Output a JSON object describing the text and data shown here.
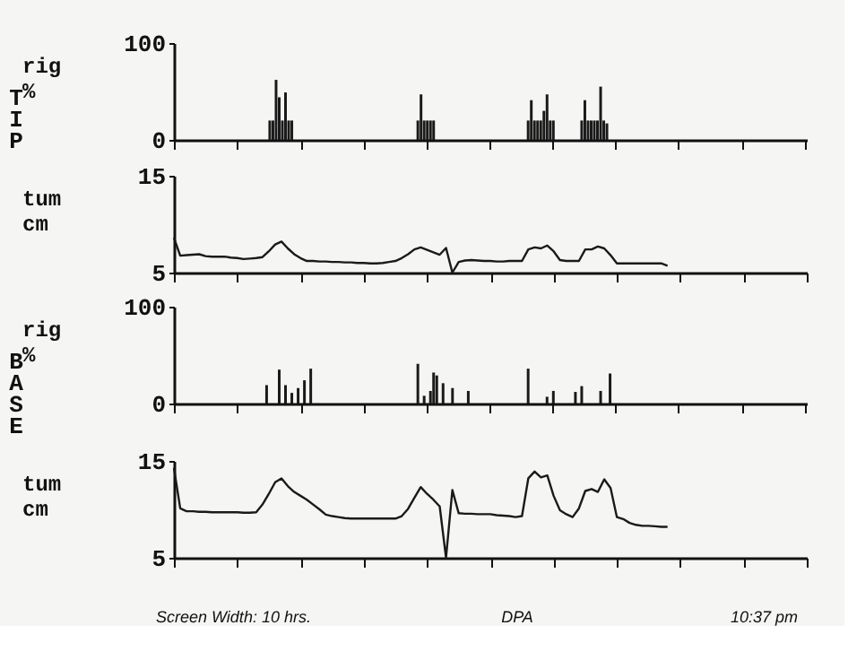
{
  "chart_data": [
    {
      "type": "bar",
      "ylabel": "rig %",
      "annotations": [
        "TIP"
      ],
      "color": "#1a1a1a",
      "ylim": [
        0,
        100
      ],
      "yticks": [
        0,
        100
      ],
      "tick_labels": "y",
      "categories": [
        null,
        null,
        null,
        null,
        null,
        null,
        null,
        null,
        null,
        null,
        null,
        null,
        null,
        null,
        null,
        null,
        null,
        null,
        null,
        null,
        null,
        null,
        null,
        null,
        null,
        null,
        null,
        null,
        null,
        null,
        null,
        null,
        null,
        null,
        null,
        null,
        null,
        null,
        null,
        null,
        null,
        null,
        null,
        null,
        null,
        null,
        null,
        null,
        null,
        null,
        null,
        null,
        null,
        null,
        null,
        null,
        null,
        null,
        null,
        null,
        null,
        null,
        null,
        null,
        null,
        null,
        null,
        null,
        null,
        null,
        null,
        null,
        null,
        null,
        null,
        null,
        null,
        null,
        null,
        null,
        null,
        null,
        null,
        null,
        null,
        null,
        null,
        null,
        null,
        null,
        null,
        null,
        null,
        null,
        null,
        null,
        null,
        null,
        null,
        null,
        null,
        null,
        null,
        null,
        null,
        null,
        null,
        null,
        null,
        null,
        null,
        null,
        null,
        null,
        null,
        null,
        null,
        null,
        null,
        null,
        null,
        null,
        null,
        null,
        null,
        null,
        null,
        null,
        null,
        null,
        null,
        null,
        null,
        null,
        null,
        null,
        null,
        null,
        null,
        null,
        null,
        null,
        null,
        null,
        null,
        null,
        null,
        null,
        null,
        null,
        null,
        null,
        null,
        null,
        null,
        null,
        null,
        null,
        null,
        null,
        null,
        null,
        null,
        null,
        null,
        null,
        null,
        null,
        null,
        null,
        null,
        null,
        null,
        null,
        null,
        null,
        null,
        null,
        null,
        null,
        null,
        null,
        null,
        null,
        null,
        null,
        null,
        null,
        null,
        null,
        null,
        null,
        null,
        null,
        null,
        null,
        null,
        null,
        null,
        null,
        null
      ],
      "values": [
        0,
        0,
        0,
        0,
        0,
        0,
        0,
        0,
        0,
        0,
        0,
        0,
        0,
        0,
        0,
        0,
        0,
        0,
        0,
        0,
        0,
        0,
        0,
        0,
        0,
        0,
        0,
        0,
        0,
        0,
        20,
        20,
        62,
        44,
        20,
        49,
        20,
        20,
        0,
        0,
        0,
        0,
        0,
        0,
        0,
        0,
        0,
        0,
        0,
        0,
        0,
        0,
        0,
        0,
        0,
        0,
        0,
        0,
        0,
        0,
        0,
        0,
        0,
        0,
        0,
        0,
        0,
        0,
        0,
        0,
        0,
        0,
        0,
        0,
        0,
        0,
        0,
        20,
        47,
        20,
        20,
        20,
        20,
        0,
        0,
        0,
        0,
        0,
        0,
        0,
        0,
        0,
        0,
        0,
        0,
        0,
        0,
        0,
        0,
        0,
        0,
        0,
        0,
        0,
        0,
        0,
        0,
        0,
        0,
        0,
        0,
        0,
        20,
        41,
        20,
        20,
        20,
        30,
        47,
        20,
        20,
        0,
        0,
        0,
        0,
        0,
        0,
        0,
        0,
        20,
        41,
        20,
        20,
        20,
        20,
        55,
        20,
        17,
        0,
        0,
        0,
        0,
        0,
        0,
        0,
        0,
        0,
        0,
        0,
        0,
        0,
        0,
        0,
        0,
        0,
        0,
        0,
        0,
        0,
        0,
        0,
        0,
        0,
        0,
        0,
        0,
        0,
        0,
        0,
        0,
        0,
        0,
        0,
        0,
        0,
        0,
        0,
        0,
        0,
        0,
        0,
        0,
        0,
        0,
        0,
        0,
        0,
        0,
        0,
        0,
        0,
        0,
        0,
        0,
        0,
        0,
        0,
        0,
        0,
        0,
        0
      ]
    },
    {
      "type": "line",
      "ylabel": "tum cm",
      "line_style": "solid",
      "color": "#1a1a1a",
      "ylim": [
        5,
        15
      ],
      "yticks": [
        5,
        15
      ],
      "tick_labels": "y",
      "categories": [
        null,
        null,
        null,
        null,
        null,
        null,
        null,
        null,
        null,
        null,
        null,
        null,
        null,
        null,
        null,
        null,
        null,
        null,
        null,
        null,
        null,
        null,
        null,
        null,
        null,
        null,
        null,
        null,
        null,
        null,
        null,
        null,
        null,
        null,
        null,
        null,
        null,
        null,
        null,
        null,
        null,
        null,
        null,
        null,
        null,
        null,
        null,
        null,
        null,
        null,
        null,
        null,
        null,
        null,
        null,
        null,
        null,
        null,
        null,
        null,
        null,
        null,
        null,
        null,
        null,
        null,
        null,
        null,
        null,
        null,
        null,
        null,
        null,
        null,
        null,
        null,
        null,
        null,
        null,
        null,
        null,
        null,
        null,
        null,
        null,
        null,
        null,
        null,
        null,
        null,
        null,
        null,
        null,
        null,
        null,
        null,
        null,
        null,
        null,
        null,
        null
      ],
      "values": [
        8.6,
        6.75,
        6.8,
        6.85,
        6.9,
        6.7,
        6.65,
        6.65,
        6.65,
        6.55,
        6.5,
        6.4,
        6.45,
        6.5,
        6.6,
        7.2,
        7.9,
        8.2,
        7.5,
        6.9,
        6.5,
        6.2,
        6.2,
        6.15,
        6.15,
        6.1,
        6.1,
        6.05,
        6.05,
        6.0,
        6.0,
        5.95,
        5.95,
        6.0,
        6.1,
        6.2,
        6.5,
        6.9,
        7.4,
        7.6,
        7.35,
        7.1,
        6.85,
        7.55,
        5.0,
        6.1,
        6.25,
        6.3,
        6.25,
        6.2,
        6.2,
        6.15,
        6.15,
        6.2,
        6.2,
        6.2,
        7.4,
        7.6,
        7.5,
        7.8,
        7.2,
        6.3,
        6.2,
        6.2,
        6.2,
        7.4,
        7.4,
        7.7,
        7.5,
        6.8,
        5.95,
        5.95,
        5.95,
        5.95,
        5.95,
        5.95,
        5.95,
        5.95,
        5.7,
        null,
        null,
        null,
        null,
        null,
        null,
        null,
        null,
        null,
        null,
        null,
        null,
        null,
        null,
        null,
        null,
        null,
        null,
        null,
        null,
        null,
        null
      ]
    },
    {
      "type": "bar",
      "ylabel": "rig %",
      "annotations": [
        "BASE"
      ],
      "color": "#1a1a1a",
      "ylim": [
        0,
        100
      ],
      "yticks": [
        0,
        100
      ],
      "tick_labels": "y",
      "categories": [
        null,
        null,
        null,
        null,
        null,
        null,
        null,
        null,
        null,
        null,
        null,
        null,
        null,
        null,
        null,
        null,
        null,
        null,
        null,
        null,
        null,
        null,
        null,
        null,
        null,
        null,
        null,
        null,
        null,
        null,
        null,
        null,
        null,
        null,
        null,
        null,
        null,
        null,
        null,
        null,
        null,
        null,
        null,
        null,
        null,
        null,
        null,
        null,
        null,
        null,
        null,
        null,
        null,
        null,
        null,
        null,
        null,
        null,
        null,
        null,
        null,
        null,
        null,
        null,
        null,
        null,
        null,
        null,
        null,
        null,
        null,
        null,
        null,
        null,
        null,
        null,
        null,
        null,
        null,
        null,
        null,
        null,
        null,
        null,
        null,
        null,
        null,
        null,
        null,
        null,
        null,
        null,
        null,
        null,
        null,
        null,
        null,
        null,
        null,
        null,
        null,
        null,
        null,
        null,
        null,
        null,
        null,
        null,
        null,
        null,
        null,
        null,
        null,
        null,
        null,
        null,
        null,
        null,
        null,
        null,
        null,
        null,
        null,
        null,
        null,
        null,
        null,
        null,
        null,
        null,
        null,
        null,
        null,
        null,
        null,
        null,
        null,
        null,
        null,
        null,
        null,
        null,
        null,
        null,
        null,
        null,
        null,
        null,
        null,
        null,
        null,
        null,
        null,
        null,
        null,
        null,
        null,
        null,
        null,
        null,
        null,
        null,
        null,
        null,
        null,
        null,
        null,
        null,
        null,
        null,
        null,
        null,
        null,
        null,
        null,
        null,
        null,
        null,
        null,
        null,
        null,
        null,
        null,
        null,
        null,
        null,
        null,
        null,
        null,
        null,
        null,
        null,
        null,
        null,
        null,
        null,
        null,
        null,
        null,
        null,
        null
      ],
      "values": [
        0,
        0,
        0,
        0,
        0,
        0,
        0,
        0,
        0,
        0,
        0,
        0,
        0,
        0,
        0,
        0,
        0,
        0,
        0,
        0,
        0,
        0,
        0,
        0,
        0,
        0,
        0,
        0,
        0,
        19,
        0,
        0,
        0,
        35,
        0,
        19,
        0,
        11,
        0,
        16,
        0,
        24,
        0,
        36,
        0,
        0,
        0,
        0,
        0,
        0,
        0,
        0,
        0,
        0,
        0,
        0,
        0,
        0,
        0,
        0,
        0,
        0,
        0,
        0,
        0,
        0,
        0,
        0,
        0,
        0,
        0,
        0,
        0,
        0,
        0,
        0,
        0,
        41,
        0,
        8,
        0,
        13,
        32,
        29,
        0,
        21,
        0,
        0,
        16,
        0,
        0,
        0,
        0,
        13,
        0,
        0,
        0,
        0,
        0,
        0,
        0,
        0,
        0,
        0,
        0,
        0,
        0,
        0,
        0,
        0,
        0,
        0,
        36,
        0,
        0,
        0,
        0,
        0,
        7,
        0,
        13,
        0,
        0,
        0,
        0,
        0,
        0,
        12,
        0,
        18,
        0,
        0,
        0,
        0,
        0,
        13,
        0,
        0,
        31,
        0,
        0,
        0,
        0,
        0,
        0,
        0,
        0,
        0,
        0,
        0,
        0,
        0,
        0,
        0,
        0,
        0,
        0,
        0,
        0,
        0,
        0,
        0,
        0,
        0,
        0,
        0,
        0,
        0,
        0,
        0,
        0,
        0,
        0,
        0,
        0,
        0,
        0,
        0,
        0,
        0,
        0,
        0,
        0,
        0,
        0,
        0,
        0,
        0,
        0,
        0,
        0,
        0,
        0,
        0,
        0,
        0,
        0,
        0,
        0,
        0,
        0
      ]
    },
    {
      "type": "line",
      "ylabel": "tum cm",
      "line_style": "solid",
      "annotations": [
        "Screen Width: 10 hrs.",
        "DPA",
        "10:37 pm"
      ],
      "color": "#1a1a1a",
      "ylim": [
        5,
        15
      ],
      "yticks": [
        5,
        15
      ],
      "tick_labels": "y",
      "categories": [
        null,
        null,
        null,
        null,
        null,
        null,
        null,
        null,
        null,
        null,
        null,
        null,
        null,
        null,
        null,
        null,
        null,
        null,
        null,
        null,
        null,
        null,
        null,
        null,
        null,
        null,
        null,
        null,
        null,
        null,
        null,
        null,
        null,
        null,
        null,
        null,
        null,
        null,
        null,
        null,
        null,
        null,
        null,
        null,
        null,
        null,
        null,
        null,
        null,
        null,
        null,
        null,
        null,
        null,
        null,
        null,
        null,
        null,
        null,
        null,
        null,
        null,
        null,
        null,
        null,
        null,
        null,
        null,
        null,
        null,
        null,
        null,
        null,
        null,
        null,
        null,
        null,
        null,
        null,
        null,
        null,
        null,
        null,
        null,
        null,
        null,
        null,
        null,
        null,
        null,
        null,
        null,
        null,
        null,
        null,
        null,
        null,
        null,
        null,
        null,
        null
      ],
      "values": [
        14.3,
        10.1,
        9.8,
        9.8,
        9.75,
        9.75,
        9.7,
        9.7,
        9.7,
        9.7,
        9.7,
        9.65,
        9.65,
        9.7,
        10.5,
        11.6,
        12.8,
        13.2,
        12.4,
        11.8,
        11.4,
        11.0,
        10.5,
        10.0,
        9.45,
        9.3,
        9.2,
        9.1,
        9.05,
        9.05,
        9.05,
        9.05,
        9.05,
        9.05,
        9.05,
        9.05,
        9.3,
        10.05,
        11.2,
        12.3,
        11.6,
        11.0,
        10.3,
        5.0,
        12.0,
        9.6,
        9.55,
        9.55,
        9.5,
        9.5,
        9.5,
        9.4,
        9.35,
        9.3,
        9.2,
        9.3,
        13.2,
        13.9,
        13.3,
        13.5,
        11.4,
        9.9,
        9.5,
        9.2,
        10.1,
        11.9,
        12.1,
        11.8,
        13.1,
        12.2,
        9.2,
        9.0,
        8.6,
        8.4,
        8.3,
        8.3,
        8.25,
        8.2,
        8.2,
        null,
        null,
        null,
        null,
        null,
        null,
        null,
        null,
        null,
        null,
        null,
        null,
        null,
        null,
        null,
        null,
        null,
        null,
        null,
        null,
        null,
        null
      ]
    }
  ]
}
